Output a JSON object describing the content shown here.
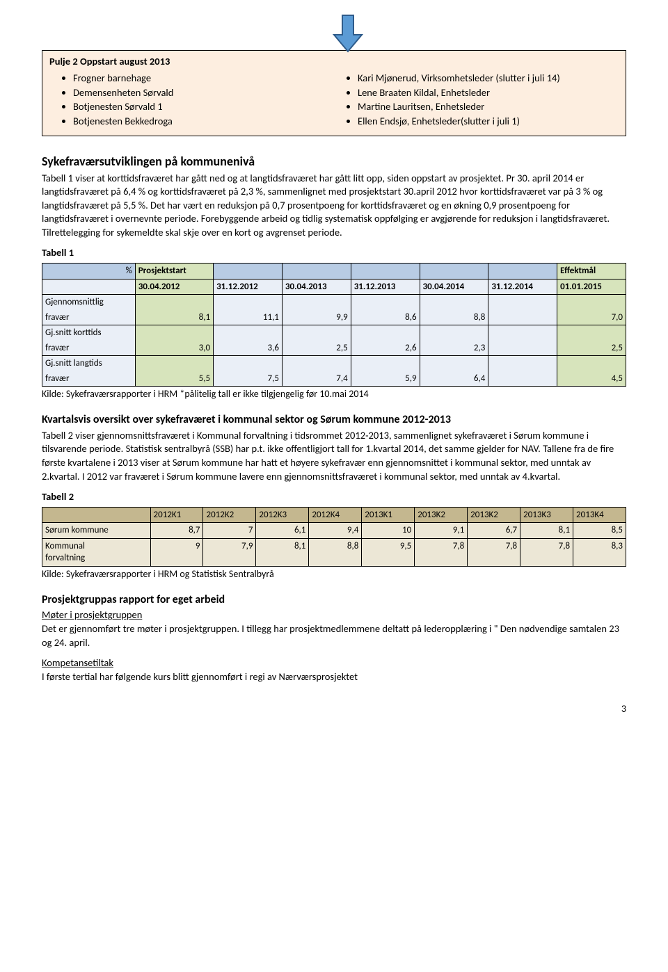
{
  "arrow": {
    "fill": "#5b9bd5",
    "stroke": "#2e5b8a"
  },
  "box": {
    "title": "Pulje 2 Oppstart august 2013",
    "bg": "#fdeee0",
    "left": [
      "Frogner barnehage",
      "Demensenheten Sørvald",
      "Botjenesten Sørvald 1",
      "Botjenesten Bekkedroga"
    ],
    "right": [
      "Kari Mjønerud, Virksomhetsleder (slutter i juli 14)",
      "Lene Braaten Kildal, Enhetsleder",
      "Martine Lauritsen, Enhetsleder",
      "Ellen Endsjø, Enhetsleder(slutter i juli 1)"
    ]
  },
  "section1": {
    "heading": "Sykefraværsutviklingen på kommunenivå",
    "body": "Tabell 1 viser at korttidsfraværet har gått ned og at langtidsfraværet har gått litt opp, siden oppstart av prosjektet. Pr 30. april 2014 er langtidsfraværet på 6,4 % og korttidsfraværet på 2,3 %, sammenlignet med prosjektstart 30.april 2012 hvor korttidsfraværet var på 3 % og langtidsfraværet på 5,5 %. Det har vært en reduksjon på 0,7 prosentpoeng for korttidsfraværet og en økning 0,9 prosentpoeng for langtidsfraværet i overnevnte periode. Forebyggende arbeid og tidlig systematisk oppfølging er avgjørende for reduksjon i langtidsfraværet. Tilrettelegging for sykemeldte skal skje over en kort og avgrenset periode."
  },
  "table1": {
    "label": "Tabell 1",
    "header_row1": [
      "%",
      "Prosjektstart",
      "",
      "",
      "",
      "",
      "",
      "Effektmål"
    ],
    "header_row2": [
      "",
      "30.04.2012",
      "31.12.2012",
      "30.04.2013",
      "31.12.2013",
      "30.04.2014",
      "31.12.2014",
      "01.01.2015"
    ],
    "rows": [
      {
        "label_lines": [
          "Gjennomsnittlig",
          "fravær"
        ],
        "vals": [
          "8,1",
          "11,1",
          "9,9",
          "8,6",
          "8,8",
          "",
          "7,0"
        ]
      },
      {
        "label_lines": [
          "Gj.snitt korttids",
          "fravær"
        ],
        "vals": [
          "3,0",
          "3,6",
          "2,5",
          "2,6",
          "2,3",
          "",
          "2,5"
        ]
      },
      {
        "label_lines": [
          "Gj.snitt langtids",
          "fravær"
        ],
        "vals": [
          "5,5",
          "7,5",
          "7,4",
          "5,9",
          "6,4",
          "",
          "4,5"
        ]
      }
    ],
    "colors": {
      "header_bg": "#b8cce4",
      "row_bg": "#eaeff7",
      "proj_col_bg": "#d7e4bc",
      "effekt_col_bg": "#d7e4bc"
    },
    "kilde": "Kilde: Sykefraværsrapporter i HRM *pålitelig tall er ikke tilgjengelig før 10.mai 2014"
  },
  "section2": {
    "heading": "Kvartalsvis oversikt over sykefraværet i kommunal sektor og Sørum kommune 2012-2013",
    "body": "Tabell 2 viser gjennomsnittsfraværet i Kommunal forvaltning i tidsrommet 2012-2013, sammenlignet sykefraværet i Sørum kommune i tilsvarende periode. Statistisk sentralbyrå (SSB) har p.t. ikke offentligjort tall for 1.kvartal 2014, det samme gjelder for NAV. Tallene fra de fire første kvartalene i 2013 viser at Sørum kommune har hatt et høyere sykefravær enn gjennomsnittet i kommunal sektor, med unntak av 2.kvartal. I 2012 var fraværet i Sørum kommune lavere enn gjennomsnittsfraværet i kommunal sektor, med unntak av 4.kvartal."
  },
  "table2": {
    "label": "Tabell 2",
    "headers": [
      "",
      "2012K1",
      "2012K2",
      "2012K3",
      "2012K4",
      "2013K1",
      "2013K2",
      "2013K2",
      "2013K3",
      "2013K4"
    ],
    "rows": [
      {
        "label": "Sørum kommune",
        "vals": [
          "8,7",
          "7",
          "6,1",
          "9,4",
          "10",
          "9,1",
          "6,7",
          "8,1",
          "8,5"
        ]
      },
      {
        "label_lines": [
          "Kommunal",
          "forvaltning"
        ],
        "vals": [
          "9",
          "7,9",
          "8,1",
          "8,8",
          "9,5",
          "7,8",
          "7,8",
          "7,8",
          "8,3"
        ]
      }
    ],
    "colors": {
      "header_bg": "#c4b78f",
      "row_bg": "#ece7d6"
    },
    "kilde": "Kilde: Sykefraværsrapporter i HRM og Statistisk Sentralbyrå"
  },
  "section3": {
    "heading": "Prosjektgruppas rapport for eget arbeid",
    "sub1_title": "Møter i prosjektgruppen",
    "sub1_body": "Det er gjennomført tre møter i prosjektgruppen. I tillegg har prosjektmedlemmene deltatt på lederopplæring i \" Den nødvendige samtalen 23 og 24.  april.",
    "sub2_title": "Kompetansetiltak",
    "sub2_body": "I første tertial har følgende kurs blitt gjennomført i regi av Nærværsprosjektet"
  },
  "pagenum": "3"
}
